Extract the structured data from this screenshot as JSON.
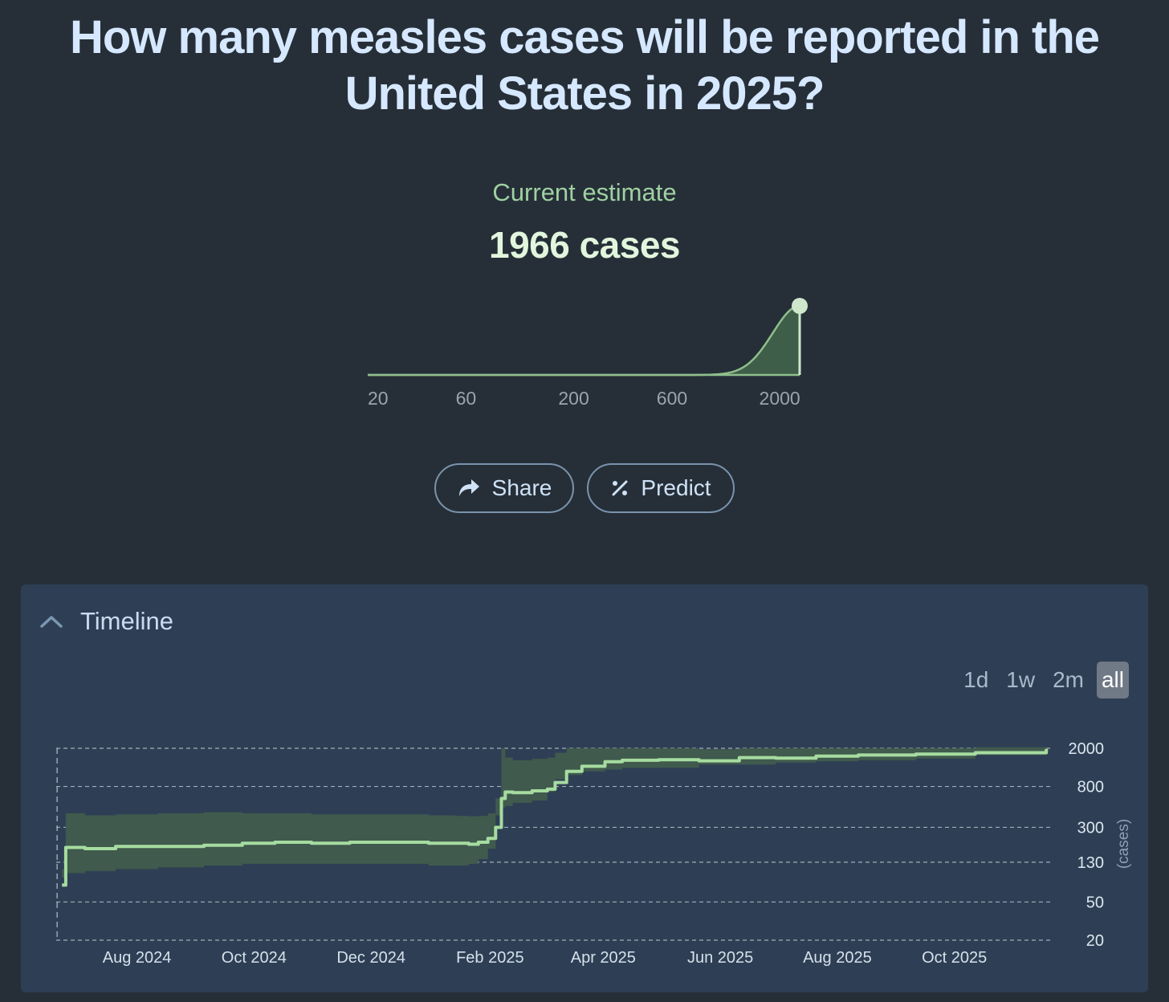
{
  "question": {
    "title": "How many measles cases will be reported in the United States in 2025?"
  },
  "estimate": {
    "label": "Current estimate",
    "value": "1966 cases"
  },
  "mini_chart": {
    "type": "area",
    "scale": "log",
    "tick_labels": [
      "20",
      "60",
      "200",
      "600",
      "2000"
    ],
    "ticks": [
      20,
      60,
      200,
      600,
      2000
    ],
    "xlim": [
      20,
      2500
    ],
    "marker_value": 2500,
    "curve_color": "#8fbf8c",
    "fill_color": "#3f5e49"
  },
  "actions": {
    "share_label": "Share",
    "predict_label": "Predict"
  },
  "timeline": {
    "title": "Timeline",
    "ranges": [
      {
        "label": "1d",
        "active": false
      },
      {
        "label": "1w",
        "active": false
      },
      {
        "label": "2m",
        "active": false
      },
      {
        "label": "all",
        "active": true
      }
    ]
  },
  "chart_data": {
    "type": "line",
    "y_scale": "log",
    "ylabel": "(cases)",
    "y_ticks": [
      20,
      50,
      130,
      300,
      800,
      2000
    ],
    "y_tick_labels": [
      "20",
      "50",
      "130",
      "300",
      "800",
      "2000"
    ],
    "x_tick_labels": [
      "Aug 2024",
      "Oct 2024",
      "Dec 2024",
      "Feb 2025",
      "Apr 2025",
      "Jun 2025",
      "Aug 2025",
      "Oct 2025"
    ],
    "x_ticks": [
      "2024-08-01",
      "2024-10-01",
      "2024-12-01",
      "2025-02-01",
      "2025-04-01",
      "2025-06-01",
      "2025-08-01",
      "2025-10-01"
    ],
    "xlim": [
      "2024-07-10",
      "2025-12-10"
    ],
    "ylim": [
      20,
      2000
    ],
    "grid": true,
    "line_color": "#a6dca0",
    "band_color": "#405a4d",
    "series": [
      {
        "x": [
          "2024-07-13",
          "2024-07-15",
          "2024-07-25",
          "2024-08-10",
          "2024-09-01",
          "2024-09-25",
          "2024-10-15",
          "2024-11-01",
          "2024-11-20",
          "2024-12-10",
          "2025-01-01",
          "2025-01-20",
          "2025-02-03",
          "2025-02-10",
          "2025-02-15",
          "2025-02-20",
          "2025-02-24",
          "2025-02-27",
          "2025-03-01",
          "2025-03-05",
          "2025-03-15",
          "2025-03-23",
          "2025-03-27",
          "2025-04-02",
          "2025-04-10",
          "2025-04-22",
          "2025-05-01",
          "2025-05-20",
          "2025-06-10",
          "2025-07-01",
          "2025-07-20",
          "2025-08-10",
          "2025-09-01",
          "2025-10-01",
          "2025-11-01",
          "2025-12-08"
        ],
        "y": [
          75,
          185,
          180,
          190,
          190,
          195,
          205,
          210,
          205,
          210,
          210,
          205,
          205,
          200,
          210,
          230,
          300,
          600,
          700,
          690,
          720,
          750,
          880,
          1150,
          1300,
          1450,
          1500,
          1520,
          1480,
          1600,
          1580,
          1660,
          1700,
          1740,
          1800,
          1966
        ],
        "lo": [
          50,
          90,
          100,
          105,
          110,
          115,
          120,
          125,
          125,
          125,
          125,
          125,
          120,
          120,
          125,
          140,
          180,
          400,
          480,
          500,
          540,
          570,
          700,
          950,
          1050,
          1150,
          1200,
          1250,
          1250,
          1350,
          1350,
          1420,
          1460,
          1500,
          1560,
          1700
        ],
        "hi": [
          110,
          420,
          400,
          410,
          420,
          430,
          420,
          420,
          410,
          410,
          410,
          400,
          395,
          390,
          395,
          420,
          600,
          2000,
          1600,
          1500,
          1550,
          1600,
          1800,
          2000,
          2000,
          2000,
          2000,
          2000,
          1950,
          2000,
          2000,
          2000,
          2000,
          2000,
          2050,
          2150
        ]
      }
    ]
  }
}
